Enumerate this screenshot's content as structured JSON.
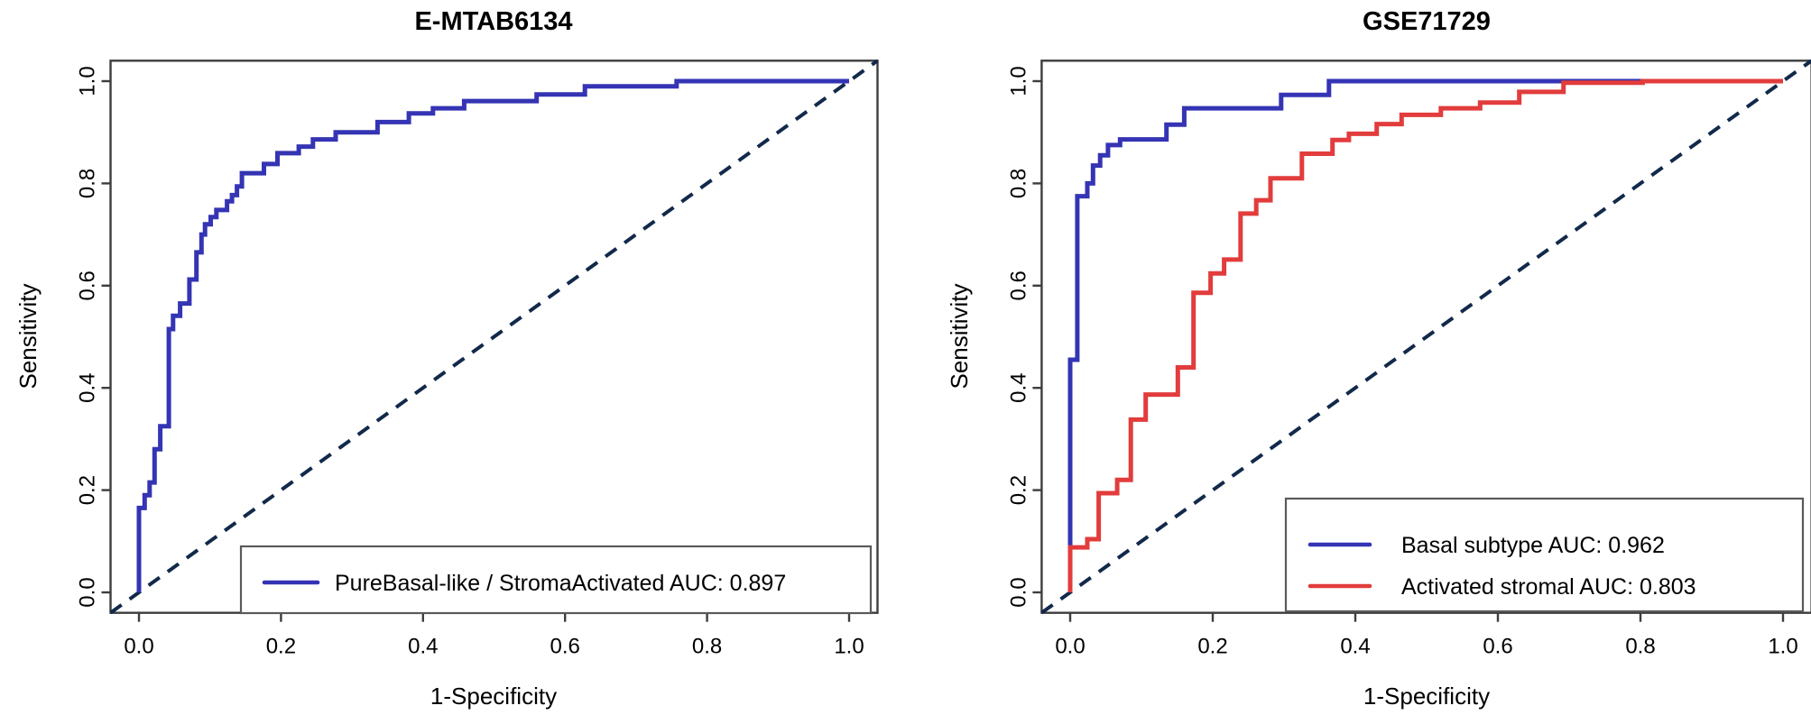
{
  "chart_data": [
    {
      "type": "line",
      "subtype": "roc-curve",
      "title": "E-MTAB6134",
      "xlabel": "1-Specificity",
      "ylabel": "Sensitivity",
      "xlim": [
        -0.04,
        1.04
      ],
      "ylim": [
        -0.04,
        1.04
      ],
      "xtick_values": [
        0.0,
        0.2,
        0.4,
        0.6,
        0.8,
        1.0
      ],
      "ytick_values": [
        0.0,
        0.2,
        0.4,
        0.6,
        0.8,
        1.0
      ],
      "xtick_labels": [
        "0.0",
        "0.2",
        "0.4",
        "0.6",
        "0.8",
        "1.0"
      ],
      "ytick_labels": [
        "0.0",
        "0.2",
        "0.4",
        "0.6",
        "0.8",
        "1.0"
      ],
      "grid": false,
      "reference_line": {
        "style": "dashed",
        "color": "#12294a",
        "from": [
          -0.04,
          -0.04
        ],
        "to": [
          1.04,
          1.04
        ]
      },
      "legend": {
        "position": "bottom-right",
        "items": [
          {
            "label": "PureBasal-like / StromaActivated AUC: 0.897",
            "color": "#3434b4"
          }
        ]
      },
      "series": [
        {
          "name": "PureBasal-like / StromaActivated",
          "auc": "0.897",
          "color": "#3434b4",
          "points": [
            [
              0,
              0
            ],
            [
              0,
              0.165
            ],
            [
              0.008,
              0.165
            ],
            [
              0.008,
              0.19
            ],
            [
              0.015,
              0.19
            ],
            [
              0.015,
              0.215
            ],
            [
              0.022,
              0.215
            ],
            [
              0.022,
              0.28
            ],
            [
              0.03,
              0.28
            ],
            [
              0.03,
              0.325
            ],
            [
              0.042,
              0.325
            ],
            [
              0.042,
              0.515
            ],
            [
              0.048,
              0.515
            ],
            [
              0.048,
              0.541
            ],
            [
              0.058,
              0.541
            ],
            [
              0.058,
              0.565
            ],
            [
              0.071,
              0.565
            ],
            [
              0.071,
              0.612
            ],
            [
              0.081,
              0.612
            ],
            [
              0.081,
              0.665
            ],
            [
              0.088,
              0.665
            ],
            [
              0.088,
              0.7
            ],
            [
              0.093,
              0.7
            ],
            [
              0.093,
              0.72
            ],
            [
              0.101,
              0.72
            ],
            [
              0.101,
              0.734
            ],
            [
              0.109,
              0.734
            ],
            [
              0.109,
              0.748
            ],
            [
              0.124,
              0.748
            ],
            [
              0.124,
              0.765
            ],
            [
              0.131,
              0.765
            ],
            [
              0.131,
              0.777
            ],
            [
              0.138,
              0.777
            ],
            [
              0.138,
              0.794
            ],
            [
              0.145,
              0.794
            ],
            [
              0.145,
              0.82
            ],
            [
              0.176,
              0.82
            ],
            [
              0.176,
              0.838
            ],
            [
              0.195,
              0.838
            ],
            [
              0.195,
              0.859
            ],
            [
              0.225,
              0.859
            ],
            [
              0.225,
              0.872
            ],
            [
              0.245,
              0.872
            ],
            [
              0.245,
              0.886
            ],
            [
              0.277,
              0.886
            ],
            [
              0.277,
              0.9
            ],
            [
              0.336,
              0.9
            ],
            [
              0.336,
              0.92
            ],
            [
              0.38,
              0.92
            ],
            [
              0.38,
              0.937
            ],
            [
              0.414,
              0.937
            ],
            [
              0.414,
              0.947
            ],
            [
              0.458,
              0.947
            ],
            [
              0.458,
              0.961
            ],
            [
              0.56,
              0.961
            ],
            [
              0.56,
              0.974
            ],
            [
              0.628,
              0.974
            ],
            [
              0.628,
              0.99
            ],
            [
              0.757,
              0.99
            ],
            [
              0.757,
              1
            ],
            [
              1,
              1
            ]
          ]
        }
      ]
    },
    {
      "type": "line",
      "subtype": "roc-curve",
      "title": "GSE71729",
      "xlabel": "1-Specificity",
      "ylabel": "Sensitivity",
      "xlim": [
        -0.04,
        1.04
      ],
      "ylim": [
        -0.04,
        1.04
      ],
      "xtick_values": [
        0.0,
        0.2,
        0.4,
        0.6,
        0.8,
        1.0
      ],
      "ytick_values": [
        0.0,
        0.2,
        0.4,
        0.6,
        0.8,
        1.0
      ],
      "xtick_labels": [
        "0.0",
        "0.2",
        "0.4",
        "0.6",
        "0.8",
        "1.0"
      ],
      "ytick_labels": [
        "0.0",
        "0.2",
        "0.4",
        "0.6",
        "0.8",
        "1.0"
      ],
      "grid": false,
      "reference_line": {
        "style": "dashed",
        "color": "#12294a",
        "from": [
          -0.04,
          -0.04
        ],
        "to": [
          1.04,
          1.04
        ]
      },
      "legend": {
        "position": "bottom-right",
        "items": [
          {
            "label": "Basal subtype AUC: 0.962",
            "color": "#3434b4"
          },
          {
            "label": "Activated stromal AUC: 0.803",
            "color": "#e23c3c"
          }
        ]
      },
      "series": [
        {
          "name": "Basal subtype",
          "auc": "0.962",
          "color": "#3434b4",
          "points": [
            [
              0,
              0
            ],
            [
              0,
              0.455
            ],
            [
              0.01,
              0.455
            ],
            [
              0.01,
              0.775
            ],
            [
              0.024,
              0.775
            ],
            [
              0.024,
              0.8
            ],
            [
              0.032,
              0.8
            ],
            [
              0.032,
              0.835
            ],
            [
              0.042,
              0.835
            ],
            [
              0.042,
              0.855
            ],
            [
              0.053,
              0.855
            ],
            [
              0.053,
              0.875
            ],
            [
              0.07,
              0.875
            ],
            [
              0.07,
              0.886
            ],
            [
              0.135,
              0.886
            ],
            [
              0.135,
              0.915
            ],
            [
              0.16,
              0.915
            ],
            [
              0.16,
              0.947
            ],
            [
              0.296,
              0.947
            ],
            [
              0.296,
              0.973
            ],
            [
              0.363,
              0.973
            ],
            [
              0.363,
              1
            ],
            [
              1,
              1
            ]
          ]
        },
        {
          "name": "Activated stromal",
          "auc": "0.803",
          "color": "#e23c3c",
          "points": [
            [
              0,
              0
            ],
            [
              0,
              0.088
            ],
            [
              0.024,
              0.088
            ],
            [
              0.024,
              0.104
            ],
            [
              0.04,
              0.104
            ],
            [
              0.04,
              0.194
            ],
            [
              0.066,
              0.194
            ],
            [
              0.066,
              0.22
            ],
            [
              0.085,
              0.22
            ],
            [
              0.085,
              0.338
            ],
            [
              0.106,
              0.338
            ],
            [
              0.106,
              0.387
            ],
            [
              0.151,
              0.387
            ],
            [
              0.151,
              0.44
            ],
            [
              0.173,
              0.44
            ],
            [
              0.173,
              0.586
            ],
            [
              0.197,
              0.586
            ],
            [
              0.197,
              0.624
            ],
            [
              0.216,
              0.624
            ],
            [
              0.216,
              0.651
            ],
            [
              0.239,
              0.651
            ],
            [
              0.239,
              0.741
            ],
            [
              0.261,
              0.741
            ],
            [
              0.261,
              0.767
            ],
            [
              0.281,
              0.767
            ],
            [
              0.281,
              0.81
            ],
            [
              0.325,
              0.81
            ],
            [
              0.325,
              0.858
            ],
            [
              0.368,
              0.858
            ],
            [
              0.368,
              0.885
            ],
            [
              0.391,
              0.885
            ],
            [
              0.391,
              0.897
            ],
            [
              0.43,
              0.897
            ],
            [
              0.43,
              0.916
            ],
            [
              0.465,
              0.916
            ],
            [
              0.465,
              0.934
            ],
            [
              0.52,
              0.934
            ],
            [
              0.52,
              0.947
            ],
            [
              0.575,
              0.947
            ],
            [
              0.575,
              0.958
            ],
            [
              0.63,
              0.958
            ],
            [
              0.63,
              0.979
            ],
            [
              0.692,
              0.979
            ],
            [
              0.692,
              0.997
            ],
            [
              0.803,
              0.997
            ],
            [
              0.803,
              1
            ],
            [
              1,
              1
            ]
          ]
        }
      ]
    }
  ],
  "style": {
    "curve_blue": "#3434b4",
    "curve_red": "#e23c3c",
    "diagonal_navy": "#12294a",
    "frame_gray": "#3d3d3d",
    "legend_border_gray": "#5a5a5a"
  }
}
